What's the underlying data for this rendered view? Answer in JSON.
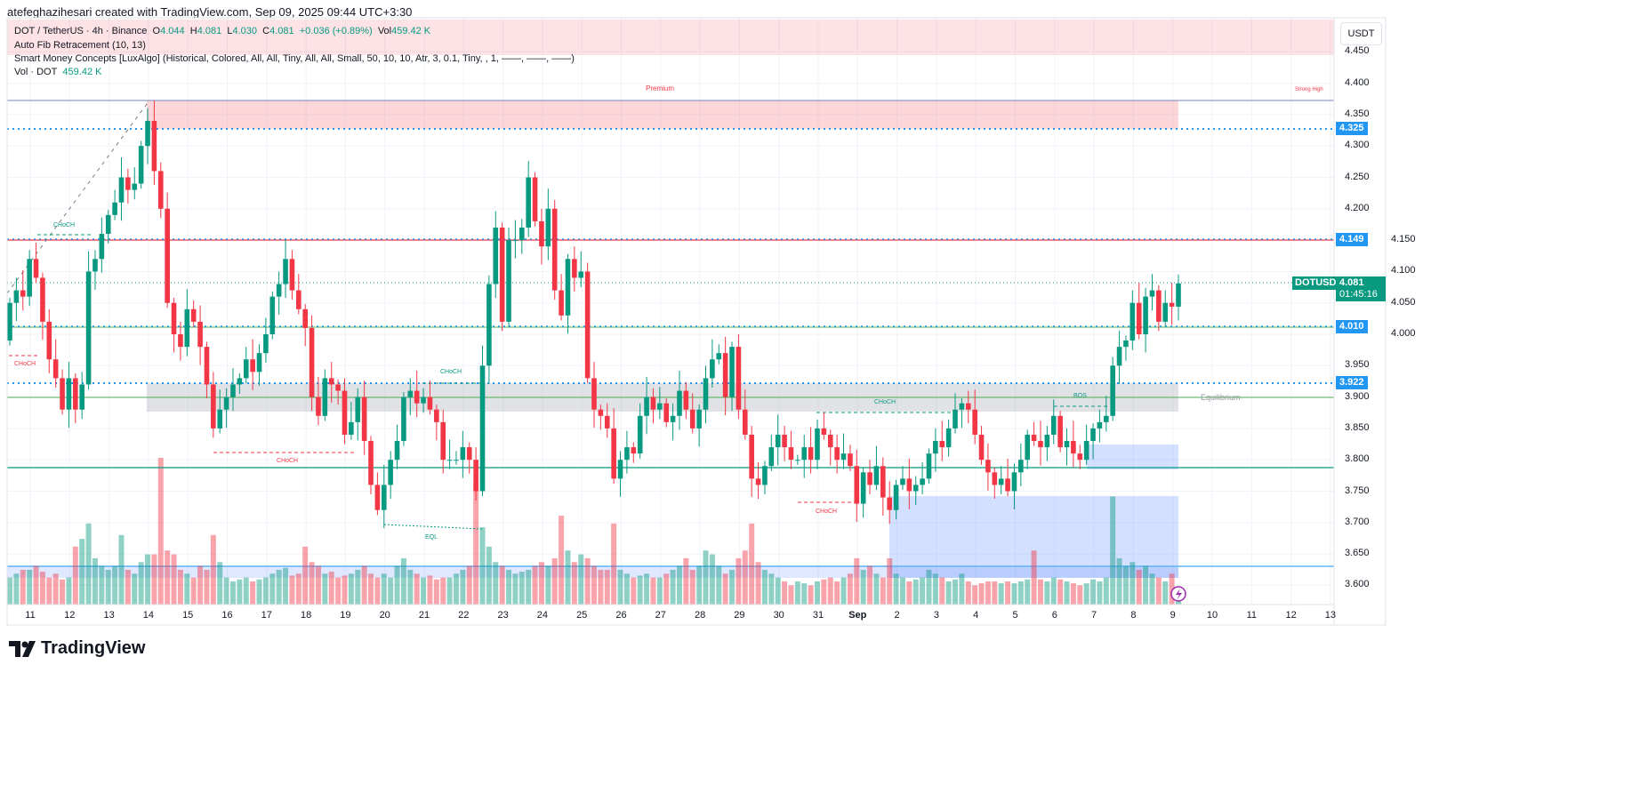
{
  "credit": "atefeghazihesari created with TradingView.com, Sep 09, 2025 09:44 UTC+3:30",
  "legend": {
    "symbol": "DOT / TetherUS · 4h · Binance",
    "o_label": "O",
    "o": "4.044",
    "h_label": "H",
    "h": "4.081",
    "l_label": "L",
    "l": "4.030",
    "c_label": "C",
    "c": "4.081",
    "change": "+0.036 (+0.89%)",
    "vol_label": "Vol",
    "vol": "459.42 K",
    "indicator1": "Auto Fib Retracement (10, 13)",
    "indicator2": "Smart Money Concepts [LuxAlgo] (Historical, Colored, All, All, Tiny, All, All, Small, 50, 10, 10, Atr, 3, 0.1, Tiny, , 1, ——, ——, ——)",
    "indicator3": "Vol · DOT",
    "indicator3_value": "459.42 K"
  },
  "axis": {
    "currency": "USDT",
    "price_ticks": [
      "4.450",
      "4.400",
      "4.350",
      "4.300",
      "4.250",
      "4.200",
      "4.150",
      "4.100",
      "4.050",
      "4.000",
      "3.950",
      "3.900",
      "3.850",
      "3.800",
      "3.750",
      "3.700",
      "3.650",
      "3.600"
    ],
    "time_labels": [
      "11",
      "12",
      "13",
      "14",
      "15",
      "16",
      "17",
      "18",
      "19",
      "20",
      "21",
      "22",
      "23",
      "24",
      "25",
      "26",
      "27",
      "28",
      "29",
      "30",
      "31",
      "Sep",
      "2",
      "3",
      "4",
      "5",
      "6",
      "7",
      "8",
      "9",
      "10",
      "11",
      "12",
      "13"
    ]
  },
  "price_tags": {
    "level_4325": "4.325",
    "level_4149": "4.149",
    "level_4010": "4.010",
    "level_3922": "3.922",
    "symbol": "DOTUSDT",
    "last_price": "4.081",
    "countdown": "01:45:16"
  },
  "smc_labels": {
    "premium": "Premium",
    "strong_high": "Strong High",
    "equilibrium": "Equilibrium",
    "choch1": "CHoCH",
    "choch2": "CHoCH",
    "choch3": "CHoCH",
    "choch4": "CHoCH",
    "choch5": "CHoCH",
    "choch6": "CHoCH",
    "eql": "EQL",
    "bos": "BOS"
  },
  "colors": {
    "up": "#089981",
    "down": "#f23645",
    "accent": "#2196f3",
    "premium": "#f23645"
  },
  "logo": "TradingView",
  "chart_data": {
    "type": "candlestick",
    "symbol": "DOTUSDT",
    "timeframe": "4h",
    "first_open": 3.99,
    "closes": [
      4.05,
      4.07,
      4.06,
      4.12,
      4.09,
      4.02,
      3.96,
      3.93,
      3.88,
      3.93,
      3.88,
      3.92,
      4.1,
      4.12,
      4.16,
      4.19,
      4.21,
      4.25,
      4.23,
      4.24,
      4.3,
      4.34,
      4.26,
      4.2,
      4.05,
      4.0,
      3.98,
      4.04,
      4.02,
      3.98,
      3.92,
      3.85,
      3.88,
      3.9,
      3.92,
      3.93,
      3.96,
      3.94,
      3.97,
      4.0,
      4.06,
      4.08,
      4.12,
      4.07,
      4.04,
      4.01,
      3.9,
      3.87,
      3.93,
      3.92,
      3.91,
      3.84,
      3.86,
      3.9,
      3.83,
      3.76,
      3.72,
      3.76,
      3.8,
      3.83,
      3.9,
      3.91,
      3.89,
      3.9,
      3.88,
      3.86,
      3.8,
      3.8,
      3.8,
      3.82,
      3.8,
      3.75,
      3.95,
      4.08,
      4.17,
      4.02,
      4.15,
      4.15,
      4.17,
      4.25,
      4.18,
      4.14,
      4.2,
      4.07,
      4.03,
      4.12,
      4.09,
      4.1,
      3.93,
      3.88,
      3.87,
      3.85,
      3.77,
      3.8,
      3.82,
      3.81,
      3.87,
      3.9,
      3.88,
      3.89,
      3.86,
      3.87,
      3.91,
      3.88,
      3.85,
      3.88,
      3.93,
      3.96,
      3.97,
      3.9,
      3.98,
      3.88,
      3.84,
      3.77,
      3.76,
      3.79,
      3.82,
      3.84,
      3.82,
      3.8,
      3.8,
      3.82,
      3.8,
      3.85,
      3.84,
      3.82,
      3.8,
      3.81,
      3.79,
      3.73,
      3.78,
      3.76,
      3.79,
      3.74,
      3.72,
      3.76,
      3.77,
      3.75,
      3.76,
      3.77,
      3.81,
      3.83,
      3.82,
      3.85,
      3.88,
      3.89,
      3.88,
      3.84,
      3.8,
      3.78,
      3.76,
      3.77,
      3.75,
      3.78,
      3.8,
      3.84,
      3.83,
      3.82,
      3.84,
      3.87,
      3.82,
      3.83,
      3.81,
      3.8,
      3.83,
      3.85,
      3.86,
      3.87,
      3.95,
      3.98,
      3.99,
      4.05,
      4.0,
      4.06,
      4.07,
      4.02,
      4.05,
      4.044,
      4.081
    ],
    "volumes_k": [
      700,
      800,
      900,
      900,
      1000,
      850,
      700,
      800,
      650,
      700,
      1500,
      1700,
      2100,
      1200,
      1000,
      900,
      1000,
      1800,
      900,
      800,
      1100,
      1300,
      1300,
      3800,
      1400,
      1300,
      900,
      800,
      700,
      1000,
      900,
      1800,
      1100,
      700,
      600,
      650,
      700,
      600,
      650,
      700,
      800,
      900,
      950,
      750,
      800,
      1500,
      1100,
      1000,
      800,
      850,
      700,
      750,
      800,
      900,
      1000,
      800,
      700,
      800,
      700,
      1000,
      1200,
      900,
      800,
      700,
      750,
      650,
      700,
      700,
      800,
      900,
      1000,
      3100,
      2000,
      1500,
      1100,
      1000,
      900,
      800,
      850,
      900,
      1000,
      1100,
      1000,
      1200,
      2300,
      1400,
      1100,
      1300,
      1200,
      1000,
      900,
      900,
      2100,
      900,
      800,
      700,
      750,
      800,
      700,
      700,
      800,
      900,
      1000,
      1200,
      900,
      1000,
      1400,
      1300,
      1000,
      800,
      900,
      1200,
      1400,
      2100,
      1100,
      900,
      800,
      700,
      600,
      500,
      600,
      550,
      500,
      600,
      650,
      700,
      600,
      700,
      800,
      1200,
      900,
      1000,
      800,
      700,
      1200,
      800,
      700,
      600,
      650,
      700,
      900,
      800,
      700,
      600,
      650,
      800,
      600,
      500,
      550,
      600,
      600,
      550,
      600,
      550,
      600,
      650,
      1400,
      650,
      600,
      700,
      650,
      600,
      550,
      500,
      550,
      650,
      600,
      700,
      2800,
      1200,
      1000,
      1100,
      900,
      1000,
      800,
      700,
      600,
      800,
      459.42
    ],
    "levels": {
      "strong_high": 4.37,
      "fib_4325": 4.325,
      "red_4149": 4.149,
      "last": 4.081,
      "green_4010": 4.01,
      "blue_3922": 3.922,
      "equilibrium": 3.9,
      "teal_3790": 3.79
    },
    "ylim": [
      3.57,
      4.48
    ]
  }
}
